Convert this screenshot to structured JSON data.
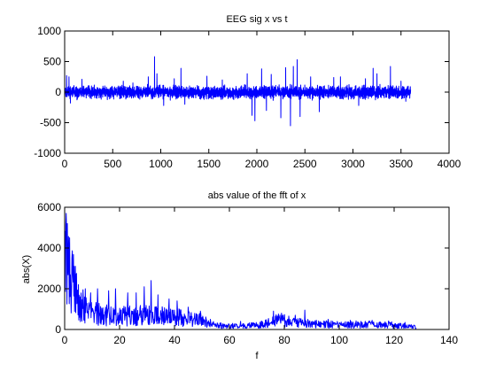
{
  "figure": {
    "background": "#ffffff",
    "axes_color": "#000000",
    "line_color": "#0000ff"
  },
  "chart_data": [
    {
      "type": "line",
      "title": "EEG sig x vs t",
      "xlabel": "",
      "ylabel": "",
      "xlim": [
        0,
        4000
      ],
      "ylim": [
        -1000,
        1000
      ],
      "xticks": [
        0,
        500,
        1000,
        1500,
        2000,
        2500,
        3000,
        3500,
        4000
      ],
      "yticks": [
        -1000,
        -500,
        0,
        500,
        1000
      ],
      "grid": false,
      "series": [
        {
          "color": "#0000ff",
          "x_range": [
            0,
            3600
          ],
          "samples": 3600,
          "baseline": 0,
          "typical_amplitude": 80,
          "peaks": [
            {
              "x": 20,
              "y": 270
            },
            {
              "x": 45,
              "y": 250
            },
            {
              "x": 60,
              "y": -180
            },
            {
              "x": 180,
              "y": 210
            },
            {
              "x": 610,
              "y": 180
            },
            {
              "x": 710,
              "y": 150
            },
            {
              "x": 870,
              "y": 250
            },
            {
              "x": 935,
              "y": 580
            },
            {
              "x": 960,
              "y": 300
            },
            {
              "x": 1030,
              "y": -220
            },
            {
              "x": 1140,
              "y": 220
            },
            {
              "x": 1210,
              "y": 390
            },
            {
              "x": 1250,
              "y": -200
            },
            {
              "x": 1480,
              "y": 260
            },
            {
              "x": 1640,
              "y": 200
            },
            {
              "x": 1900,
              "y": 300
            },
            {
              "x": 1950,
              "y": -380
            },
            {
              "x": 1980,
              "y": -470
            },
            {
              "x": 2050,
              "y": 380
            },
            {
              "x": 2100,
              "y": -300
            },
            {
              "x": 2150,
              "y": 290
            },
            {
              "x": 2250,
              "y": -420
            },
            {
              "x": 2300,
              "y": 400
            },
            {
              "x": 2350,
              "y": -550
            },
            {
              "x": 2380,
              "y": 420
            },
            {
              "x": 2420,
              "y": 530
            },
            {
              "x": 2450,
              "y": -400
            },
            {
              "x": 2560,
              "y": 250
            },
            {
              "x": 2650,
              "y": -320
            },
            {
              "x": 2800,
              "y": 240
            },
            {
              "x": 2870,
              "y": 250
            },
            {
              "x": 3060,
              "y": -220
            },
            {
              "x": 3130,
              "y": 220
            },
            {
              "x": 3210,
              "y": 390
            },
            {
              "x": 3250,
              "y": 300
            },
            {
              "x": 3390,
              "y": 420
            },
            {
              "x": 3500,
              "y": 180
            },
            {
              "x": 3550,
              "y": -150
            }
          ]
        }
      ]
    },
    {
      "type": "line",
      "title": "abs value of the fft of x",
      "xlabel": "f",
      "ylabel": "abs(X)",
      "xlim": [
        0,
        140
      ],
      "ylim": [
        0,
        6000
      ],
      "xticks": [
        0,
        20,
        40,
        60,
        80,
        100,
        120,
        140
      ],
      "yticks": [
        0,
        2000,
        4000,
        6000
      ],
      "grid": false,
      "series": [
        {
          "color": "#0000ff",
          "x_range": [
            0,
            128
          ],
          "samples": 920,
          "envelope": [
            {
              "x": 0,
              "y": 3200
            },
            {
              "x": 1,
              "y": 3000
            },
            {
              "x": 3,
              "y": 2200
            },
            {
              "x": 6,
              "y": 1300
            },
            {
              "x": 10,
              "y": 800
            },
            {
              "x": 15,
              "y": 700
            },
            {
              "x": 20,
              "y": 650
            },
            {
              "x": 30,
              "y": 700
            },
            {
              "x": 40,
              "y": 600
            },
            {
              "x": 48,
              "y": 500
            },
            {
              "x": 55,
              "y": 220
            },
            {
              "x": 60,
              "y": 170
            },
            {
              "x": 70,
              "y": 200
            },
            {
              "x": 77,
              "y": 450
            },
            {
              "x": 82,
              "y": 400
            },
            {
              "x": 90,
              "y": 280
            },
            {
              "x": 100,
              "y": 230
            },
            {
              "x": 110,
              "y": 250
            },
            {
              "x": 120,
              "y": 220
            },
            {
              "x": 128,
              "y": 120
            }
          ],
          "peaks": [
            {
              "x": 0.6,
              "y": 5700
            },
            {
              "x": 1.0,
              "y": 5200
            },
            {
              "x": 1.8,
              "y": 4500
            },
            {
              "x": 2.6,
              "y": 3500
            },
            {
              "x": 3.5,
              "y": 3100
            },
            {
              "x": 4.2,
              "y": 2700
            },
            {
              "x": 5.0,
              "y": 2200
            },
            {
              "x": 7.5,
              "y": 2000
            },
            {
              "x": 9.5,
              "y": 1800
            },
            {
              "x": 12.0,
              "y": 2000
            },
            {
              "x": 16.0,
              "y": 1900
            },
            {
              "x": 18.5,
              "y": 2000
            },
            {
              "x": 23.0,
              "y": 1800
            },
            {
              "x": 26.0,
              "y": 1800
            },
            {
              "x": 29.0,
              "y": 2100
            },
            {
              "x": 31.5,
              "y": 2400
            },
            {
              "x": 34.0,
              "y": 1700
            },
            {
              "x": 38.0,
              "y": 1500
            },
            {
              "x": 41.0,
              "y": 1400
            },
            {
              "x": 45.0,
              "y": 1100
            },
            {
              "x": 49.5,
              "y": 900
            },
            {
              "x": 53.0,
              "y": 500
            },
            {
              "x": 64.0,
              "y": 400
            },
            {
              "x": 76.0,
              "y": 900
            },
            {
              "x": 79.0,
              "y": 800
            },
            {
              "x": 84.0,
              "y": 700
            },
            {
              "x": 87.5,
              "y": 950
            },
            {
              "x": 96.0,
              "y": 500
            },
            {
              "x": 104.0,
              "y": 450
            },
            {
              "x": 112.0,
              "y": 450
            },
            {
              "x": 118.0,
              "y": 420
            },
            {
              "x": 124.0,
              "y": 350
            }
          ]
        }
      ]
    }
  ]
}
